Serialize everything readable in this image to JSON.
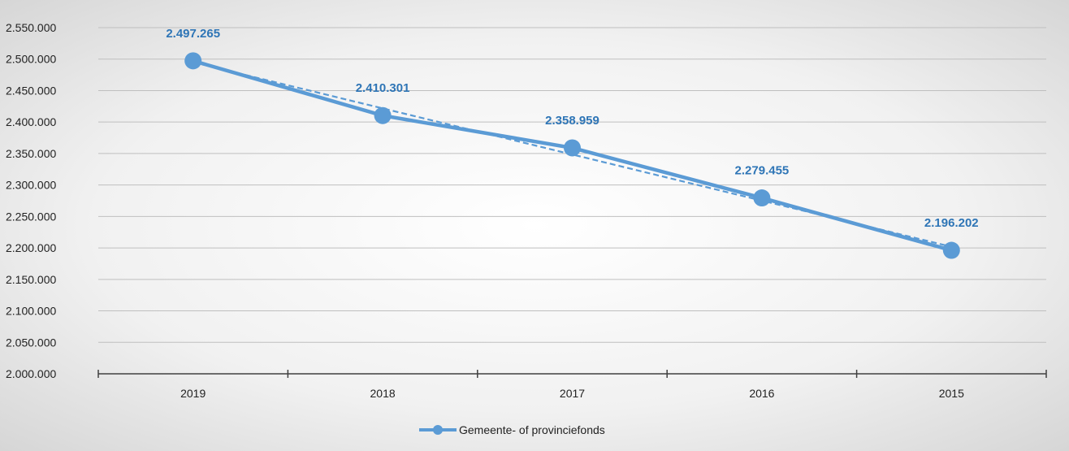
{
  "chart_data": {
    "type": "line",
    "categories": [
      "2019",
      "2018",
      "2017",
      "2016",
      "2015"
    ],
    "series": [
      {
        "name": "Gemeente- of provinciefonds",
        "values": [
          2497265,
          2410301,
          2358959,
          2279455,
          2196202
        ],
        "labels": [
          "2.497.265",
          "2.410.301",
          "2.358.959",
          "2.279.455",
          "2.196.202"
        ]
      }
    ],
    "trendline": {
      "style": "dashed",
      "type": "linear"
    },
    "ylim": [
      2000000,
      2550000
    ],
    "yticks": [
      2000000,
      2050000,
      2100000,
      2150000,
      2200000,
      2250000,
      2300000,
      2350000,
      2400000,
      2450000,
      2500000,
      2550000
    ],
    "ytick_labels": [
      "2.000.000",
      "2.050.000",
      "2.100.000",
      "2.150.000",
      "2.200.000",
      "2.250.000",
      "2.300.000",
      "2.350.000",
      "2.400.000",
      "2.450.000",
      "2.500.000",
      "2.550.000"
    ],
    "grid": true,
    "legend": "bottom-center",
    "colors": {
      "series": "#5B9BD5",
      "data_label": "#2E75B6",
      "grid": "#BFBFBF",
      "axis": "#404040"
    }
  }
}
